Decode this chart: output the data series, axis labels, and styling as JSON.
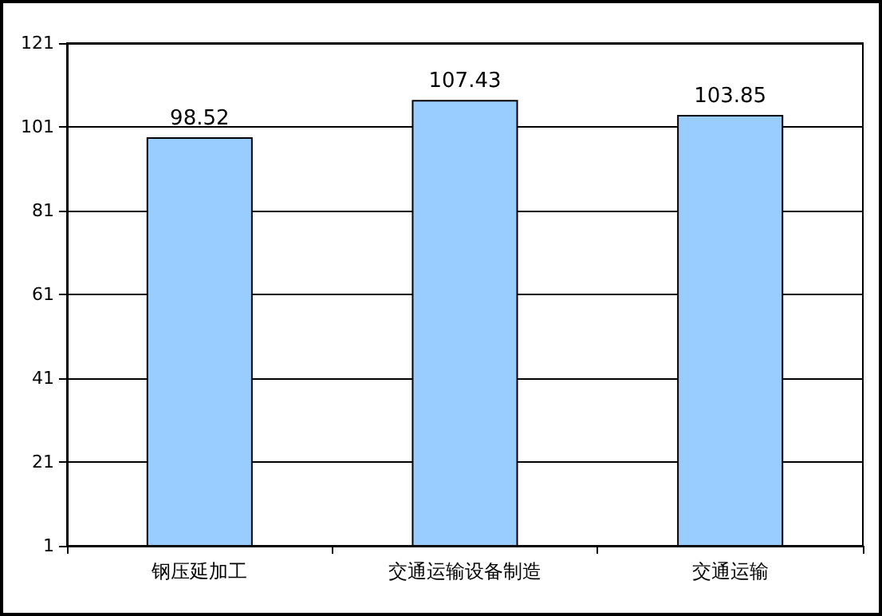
{
  "chart_data": {
    "type": "bar",
    "categories": [
      "钢压延加工",
      "交通运输设备制造",
      "交通运输"
    ],
    "values": [
      98.52,
      107.43,
      103.85
    ],
    "color": "#99ccff",
    "ylim": [
      1,
      121
    ],
    "yticks": [
      1,
      21,
      41,
      61,
      81,
      101,
      121
    ],
    "grid": "y",
    "data_labels": true
  }
}
